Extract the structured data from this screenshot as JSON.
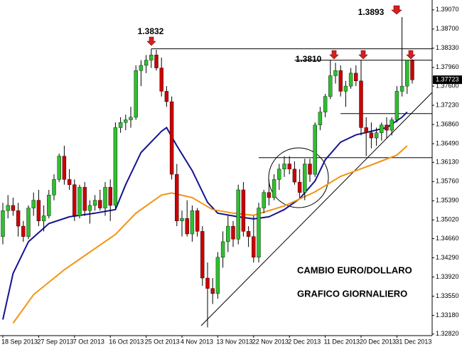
{
  "chart_data": {
    "type": "candlestick",
    "categories": [
      "18 Sep 2013",
      null,
      null,
      null,
      null,
      null,
      null,
      "27 Sep 2013",
      null,
      null,
      null,
      null,
      null,
      null,
      "7 Oct 2013",
      null,
      null,
      null,
      null,
      null,
      null,
      "16 Oct 2013",
      null,
      null,
      null,
      null,
      null,
      null,
      "25 Oct 2013",
      null,
      null,
      null,
      null,
      null,
      null,
      "4 Nov 2013",
      null,
      null,
      null,
      null,
      null,
      null,
      "13 Nov 2013",
      null,
      null,
      null,
      null,
      null,
      null,
      "22 Nov 2013",
      null,
      null,
      null,
      null,
      null,
      null,
      "2 Dec 2013",
      null,
      null,
      null,
      null,
      null,
      null,
      "11 Dec 2013",
      null,
      null,
      null,
      null,
      null,
      null,
      "20 Dec 2013",
      null,
      null,
      null,
      null,
      null,
      null,
      "31 Dec 2013",
      null,
      null,
      null
    ],
    "candles": {
      "open": [
        1.347,
        1.352,
        1.353,
        1.352,
        1.349,
        1.347,
        1.3525,
        1.354,
        1.35,
        1.351,
        1.355,
        1.358,
        1.3625,
        1.358,
        1.357,
        1.351,
        1.3565,
        1.352,
        1.353,
        1.354,
        1.3525,
        1.3565,
        1.353,
        1.368,
        1.369,
        1.3695,
        1.37,
        1.379,
        1.38,
        1.381,
        1.382,
        1.3795,
        1.375,
        1.373,
        1.359,
        1.35,
        1.3505,
        1.3475,
        1.352,
        1.348,
        1.339,
        1.337,
        1.336,
        1.343,
        1.346,
        1.349,
        1.3465,
        1.356,
        1.348,
        1.347,
        1.343,
        1.3525,
        1.3555,
        1.3545,
        1.358,
        1.36,
        1.361,
        1.36,
        1.3575,
        1.3555,
        1.361,
        1.359,
        1.3685,
        1.371,
        1.374,
        1.378,
        1.379,
        1.375,
        1.376,
        1.3785,
        1.377,
        1.368,
        1.367,
        1.366,
        1.367,
        1.3685,
        1.3675,
        1.3695,
        1.375,
        1.376,
        1.381
      ],
      "high": [
        1.3535,
        1.355,
        1.3545,
        1.3535,
        1.35,
        1.353,
        1.3555,
        1.356,
        1.353,
        1.356,
        1.359,
        1.363,
        1.3645,
        1.36,
        1.358,
        1.357,
        1.3575,
        1.354,
        1.355,
        1.356,
        1.3575,
        1.358,
        1.369,
        1.37,
        1.3705,
        1.372,
        1.38,
        1.381,
        1.382,
        1.3832,
        1.383,
        1.3815,
        1.376,
        1.374,
        1.361,
        1.352,
        1.354,
        1.353,
        1.3525,
        1.349,
        1.342,
        1.339,
        1.344,
        1.348,
        1.351,
        1.35,
        1.357,
        1.3575,
        1.349,
        1.351,
        1.3535,
        1.356,
        1.358,
        1.359,
        1.361,
        1.3625,
        1.3625,
        1.3615,
        1.36,
        1.362,
        1.362,
        1.369,
        1.372,
        1.3745,
        1.381,
        1.3805,
        1.38,
        1.377,
        1.3795,
        1.38,
        1.381,
        1.37,
        1.369,
        1.368,
        1.369,
        1.37,
        1.37,
        1.376,
        1.3893,
        1.381,
        1.3812
      ],
      "low": [
        1.3455,
        1.3505,
        1.351,
        1.347,
        1.346,
        1.3465,
        1.351,
        1.349,
        1.348,
        1.3505,
        1.354,
        1.3575,
        1.357,
        1.356,
        1.35,
        1.3505,
        1.351,
        1.3495,
        1.352,
        1.352,
        1.351,
        1.35,
        1.3525,
        1.367,
        1.3675,
        1.368,
        1.3695,
        1.376,
        1.3785,
        1.3795,
        1.379,
        1.374,
        1.372,
        1.358,
        1.349,
        1.347,
        1.347,
        1.346,
        1.347,
        1.3375,
        1.3295,
        1.334,
        1.335,
        1.341,
        1.344,
        1.345,
        1.3455,
        1.347,
        1.345,
        1.342,
        1.342,
        1.3515,
        1.353,
        1.354,
        1.356,
        1.3585,
        1.359,
        1.357,
        1.3545,
        1.354,
        1.3575,
        1.3585,
        1.3675,
        1.37,
        1.3735,
        1.3765,
        1.374,
        1.372,
        1.3755,
        1.376,
        1.3665,
        1.3625,
        1.364,
        1.3645,
        1.3655,
        1.366,
        1.3665,
        1.369,
        1.374,
        1.3745,
        1.3765
      ],
      "close": [
        1.352,
        1.353,
        1.352,
        1.349,
        1.347,
        1.3525,
        1.354,
        1.35,
        1.351,
        1.355,
        1.358,
        1.3625,
        1.358,
        1.357,
        1.351,
        1.3565,
        1.352,
        1.353,
        1.354,
        1.3525,
        1.3565,
        1.353,
        1.368,
        1.369,
        1.3695,
        1.37,
        1.379,
        1.38,
        1.381,
        1.382,
        1.3795,
        1.375,
        1.373,
        1.359,
        1.35,
        1.3505,
        1.3475,
        1.352,
        1.348,
        1.339,
        1.337,
        1.336,
        1.343,
        1.346,
        1.349,
        1.3465,
        1.356,
        1.348,
        1.347,
        1.343,
        1.3525,
        1.3555,
        1.3545,
        1.358,
        1.36,
        1.361,
        1.36,
        1.3575,
        1.3555,
        1.361,
        1.359,
        1.3685,
        1.371,
        1.374,
        1.378,
        1.379,
        1.375,
        1.376,
        1.3785,
        1.377,
        1.368,
        1.367,
        1.366,
        1.367,
        1.3685,
        1.3675,
        1.3695,
        1.375,
        1.376,
        1.381,
        1.3772
      ]
    },
    "up_color": "#2fbf2f",
    "down_color": "#cc0000",
    "series": [
      {
        "color": "#15148f",
        "x": [
          0,
          2,
          5,
          9,
          13,
          18,
          22,
          24,
          27,
          31,
          32,
          34,
          37,
          40,
          42,
          46,
          49,
          52,
          55,
          58,
          61,
          63,
          66,
          69,
          72,
          75,
          78,
          79
        ],
        "values": [
          1.331,
          1.3399,
          1.346,
          1.3495,
          1.3508,
          1.3515,
          1.3522,
          1.357,
          1.3632,
          1.3673,
          1.368,
          1.3645,
          1.3597,
          1.3536,
          1.3515,
          1.3508,
          1.3504,
          1.3508,
          1.3522,
          1.3543,
          1.3577,
          1.3618,
          1.3652,
          1.3666,
          1.3673,
          1.368,
          1.37,
          1.371
        ]
      },
      {
        "color": "#f39414",
        "x": [
          2,
          6,
          12,
          17,
          22,
          26,
          31,
          33,
          37,
          41,
          45,
          49,
          55,
          61,
          66,
          72,
          77,
          79
        ],
        "values": [
          1.3303,
          1.3358,
          1.3406,
          1.344,
          1.3474,
          1.3515,
          1.355,
          1.3554,
          1.3545,
          1.3522,
          1.3515,
          1.3511,
          1.3529,
          1.3556,
          1.3586,
          1.3608,
          1.3627,
          1.3645
        ]
      }
    ],
    "hlines": [
      {
        "value": 1.3832,
        "from": 29
      },
      {
        "value": 1.381,
        "from": 57
      },
      {
        "value": 1.3707,
        "from": 66
      },
      {
        "value": 1.3622,
        "from": 50
      }
    ],
    "ylim": [
      1.3279,
      1.3926
    ],
    "yticks": [
      {
        "value": 1.3907,
        "label": "1.39070"
      },
      {
        "value": 1.387,
        "label": "1.38700"
      },
      {
        "value": 1.3833,
        "label": "1.38330"
      },
      {
        "value": 1.3796,
        "label": "1.37960"
      },
      {
        "value": 1.376,
        "label": "1.37600"
      },
      {
        "value": 1.3723,
        "label": "1.37230"
      },
      {
        "value": 1.3686,
        "label": "1.36860"
      },
      {
        "value": 1.3649,
        "label": "1.36490"
      },
      {
        "value": 1.3613,
        "label": "1.36130"
      },
      {
        "value": 1.3576,
        "label": "1.35760"
      },
      {
        "value": 1.3539,
        "label": "1.35390"
      },
      {
        "value": 1.3502,
        "label": "1.35020"
      },
      {
        "value": 1.3466,
        "label": "1.34660"
      },
      {
        "value": 1.3429,
        "label": "1.34290"
      },
      {
        "value": 1.3392,
        "label": "1.33920"
      },
      {
        "value": 1.3355,
        "label": "1.33550"
      },
      {
        "value": 1.3318,
        "label": "1.33180"
      },
      {
        "value": 1.3282,
        "label": "1.32820"
      }
    ],
    "last_price": {
      "value": 1.37723,
      "label": "1.37723"
    },
    "annotations": [
      "1.3832",
      "1.3810",
      "1.3893",
      "CAMBIO EURO/DOLLARO",
      "GRAFICO GIORNALIERO"
    ]
  }
}
